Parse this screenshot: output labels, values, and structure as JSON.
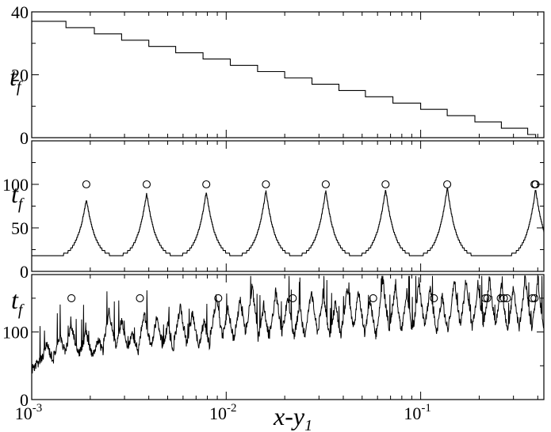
{
  "figure": {
    "xlabel_main": "x-y",
    "xlabel_sub": "1",
    "x_scale": "log",
    "xlim": [
      0.001,
      0.43
    ],
    "x_ticks": [
      {
        "value": 0.001,
        "base": "10",
        "exp": "-3"
      },
      {
        "value": 0.01,
        "base": "10",
        "exp": "-2"
      },
      {
        "value": 0.1,
        "base": "10",
        "exp": "-1"
      }
    ]
  },
  "chart_data": [
    {
      "type": "line",
      "panel": "top",
      "ylabel_main": "t",
      "ylabel_sub": "f",
      "ylim": [
        0,
        40
      ],
      "y_ticks": [
        "0",
        "20",
        "40"
      ],
      "y_tick_values": [
        0,
        20,
        40
      ],
      "step_boundaries": [
        0.0011,
        0.0015,
        0.0021,
        0.0029,
        0.004,
        0.0055,
        0.0076,
        0.0105,
        0.0145,
        0.02,
        0.0276,
        0.038,
        0.052,
        0.072,
        0.1,
        0.137,
        0.19,
        0.26,
        0.355,
        0.39
      ],
      "step_values": [
        37,
        35,
        33,
        31,
        29,
        27,
        25,
        23,
        21,
        19,
        17,
        15,
        13,
        11,
        9,
        7,
        5,
        3,
        1,
        0
      ],
      "start_value": 37
    },
    {
      "type": "line",
      "panel": "middle",
      "ylabel_main": "t",
      "ylabel_sub": "f",
      "ylim": [
        0,
        150
      ],
      "y_ticks": [
        "0",
        "50",
        "100"
      ],
      "y_tick_values": [
        0,
        50,
        100
      ],
      "peaks_x": [
        0.00191,
        0.0039,
        0.0079,
        0.016,
        0.0325,
        0.066,
        0.137,
        0.39
      ],
      "peaks_y": [
        83,
        90,
        92,
        93,
        93,
        95,
        97,
        95
      ],
      "baseline": 17,
      "circles_x": [
        0.00191,
        0.0039,
        0.0079,
        0.016,
        0.0325,
        0.066,
        0.137,
        0.385,
        0.39
      ],
      "circles_y": [
        100,
        100,
        100,
        100,
        100,
        100,
        100,
        100,
        100
      ]
    },
    {
      "type": "line",
      "panel": "bottom",
      "ylabel_main": "t",
      "ylabel_sub": "f",
      "ylim": [
        0,
        185
      ],
      "y_ticks": [
        "0",
        "100"
      ],
      "y_tick_values": [
        0,
        100
      ],
      "peaks_x": [
        0.0012,
        0.0014,
        0.0016,
        0.0019,
        0.0022,
        0.0025,
        0.0029,
        0.0033,
        0.0038,
        0.0044,
        0.005,
        0.0058,
        0.0067,
        0.0077,
        0.0089,
        0.0102,
        0.0118,
        0.0136,
        0.0156,
        0.018,
        0.0207,
        0.0238,
        0.0274,
        0.0316,
        0.0364,
        0.042,
        0.048,
        0.055,
        0.064,
        0.074,
        0.085,
        0.098,
        0.112,
        0.129,
        0.149,
        0.171,
        0.197,
        0.226,
        0.26,
        0.3,
        0.345,
        0.4
      ],
      "peaks_y": [
        82,
        95,
        110,
        100,
        90,
        130,
        118,
        100,
        128,
        122,
        110,
        140,
        128,
        118,
        152,
        138,
        150,
        170,
        140,
        162,
        155,
        140,
        165,
        160,
        145,
        170,
        162,
        150,
        178,
        170,
        160,
        175,
        168,
        155,
        180,
        178,
        172,
        182,
        175,
        168,
        180,
        176
      ],
      "baseline": 40,
      "circles_x": [
        0.0016,
        0.0036,
        0.0091,
        0.022,
        0.057,
        0.117,
        0.215,
        0.22,
        0.258,
        0.268,
        0.278,
        0.375,
        0.385
      ],
      "circles_y": [
        150,
        150,
        150,
        150,
        150,
        150,
        150,
        150,
        150,
        150,
        150,
        150,
        150
      ]
    }
  ]
}
